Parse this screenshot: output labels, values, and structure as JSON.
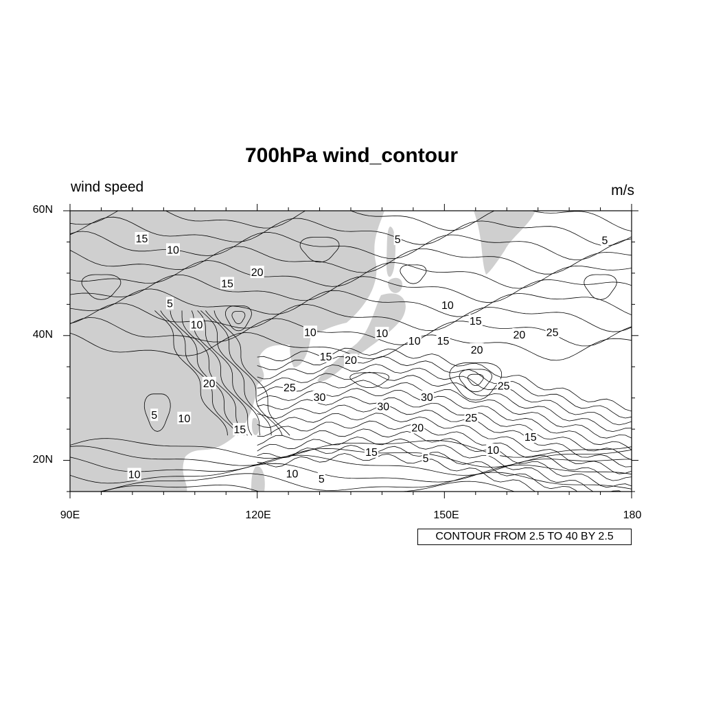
{
  "title": "700hPa wind_contour",
  "left_string": "wind speed",
  "right_string": "m/s",
  "lat_labels": [
    "60N",
    "40N",
    "20N"
  ],
  "lon_labels": [
    "90E",
    "120E",
    "150E",
    "180"
  ],
  "info_label": "CONTOUR FROM 2.5 TO 40 BY 2.5",
  "map": {
    "lon_range": [
      90,
      180
    ],
    "lat_range": [
      15,
      60
    ],
    "land_color": "#cfcfcf",
    "contour_color": "#000000",
    "contour_min": 2.5,
    "contour_max": 40,
    "contour_step": 2.5
  },
  "contour_labels": [
    {
      "text": "15",
      "lon": 101.5,
      "lat": 55.6
    },
    {
      "text": "10",
      "lon": 106.5,
      "lat": 53.8
    },
    {
      "text": "15",
      "lon": 115.2,
      "lat": 48.4
    },
    {
      "text": "20",
      "lon": 120.0,
      "lat": 50.2
    },
    {
      "text": "5",
      "lon": 106.0,
      "lat": 45.2
    },
    {
      "text": "10",
      "lon": 110.3,
      "lat": 41.8
    },
    {
      "text": "5",
      "lon": 142.5,
      "lat": 55.5
    },
    {
      "text": "5",
      "lon": 175.7,
      "lat": 55.3
    },
    {
      "text": "10",
      "lon": 150.5,
      "lat": 44.9
    },
    {
      "text": "15",
      "lon": 155.0,
      "lat": 42.4
    },
    {
      "text": "10",
      "lon": 128.5,
      "lat": 40.6
    },
    {
      "text": "10",
      "lon": 140.0,
      "lat": 40.4
    },
    {
      "text": "10",
      "lon": 145.2,
      "lat": 39.2
    },
    {
      "text": "15",
      "lon": 149.8,
      "lat": 39.2
    },
    {
      "text": "20",
      "lon": 162.0,
      "lat": 40.2
    },
    {
      "text": "25",
      "lon": 167.3,
      "lat": 40.6
    },
    {
      "text": "20",
      "lon": 155.2,
      "lat": 37.8
    },
    {
      "text": "15",
      "lon": 131.0,
      "lat": 36.7
    },
    {
      "text": "20",
      "lon": 135.0,
      "lat": 36.1
    },
    {
      "text": "25",
      "lon": 125.2,
      "lat": 31.7
    },
    {
      "text": "30",
      "lon": 130.0,
      "lat": 30.2
    },
    {
      "text": "25",
      "lon": 159.5,
      "lat": 32.0
    },
    {
      "text": "30",
      "lon": 147.2,
      "lat": 30.2
    },
    {
      "text": "30",
      "lon": 140.2,
      "lat": 28.7
    },
    {
      "text": "25",
      "lon": 154.3,
      "lat": 26.9
    },
    {
      "text": "20",
      "lon": 112.3,
      "lat": 32.4
    },
    {
      "text": "5",
      "lon": 103.5,
      "lat": 27.3
    },
    {
      "text": "10",
      "lon": 108.3,
      "lat": 26.8
    },
    {
      "text": "15",
      "lon": 117.2,
      "lat": 25.0
    },
    {
      "text": "20",
      "lon": 145.7,
      "lat": 25.3
    },
    {
      "text": "15",
      "lon": 163.8,
      "lat": 23.8
    },
    {
      "text": "15",
      "lon": 138.3,
      "lat": 21.4
    },
    {
      "text": "10",
      "lon": 157.8,
      "lat": 21.7
    },
    {
      "text": "5",
      "lon": 147.0,
      "lat": 20.4
    },
    {
      "text": "10",
      "lon": 100.3,
      "lat": 17.8
    },
    {
      "text": "10",
      "lon": 125.6,
      "lat": 17.9
    },
    {
      "text": "5",
      "lon": 130.3,
      "lat": 17.1
    }
  ]
}
